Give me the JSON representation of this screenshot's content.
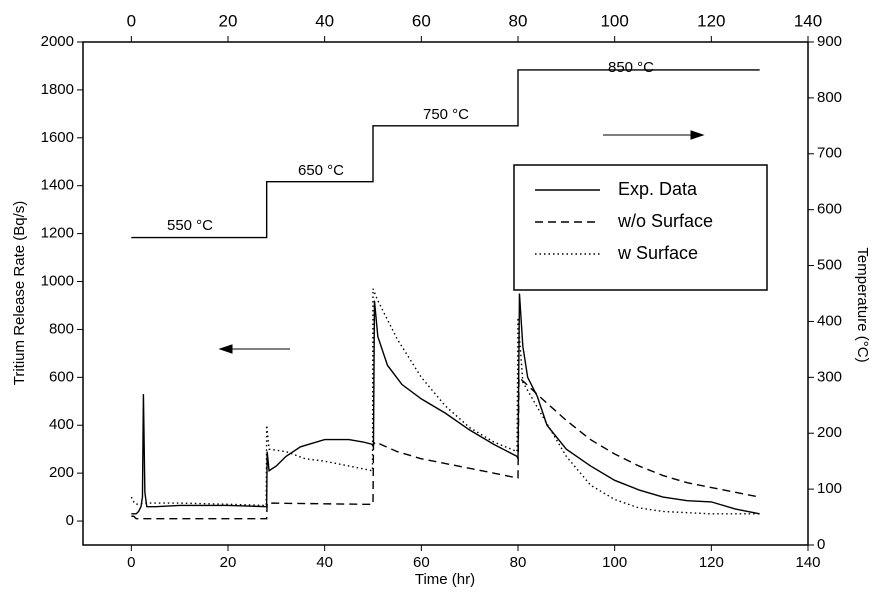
{
  "chart_data": {
    "type": "line",
    "x_label": "Time (hr)",
    "y_label": "Tritium Release Rate (Bq/s)",
    "y2_label": "Temperature (°C)",
    "xlim": [
      -10,
      140
    ],
    "xticks": [
      0,
      20,
      40,
      60,
      80,
      100,
      120,
      140
    ],
    "ylim": [
      -100,
      2000
    ],
    "yticks": [
      0,
      200,
      400,
      600,
      800,
      1000,
      1200,
      1400,
      1600,
      1800,
      2000
    ],
    "y2lim": [
      0,
      900
    ],
    "y2ticks": [
      0,
      100,
      200,
      300,
      400,
      500,
      600,
      700,
      800,
      900
    ],
    "legend": "upper right",
    "annotations": [
      "550 °C",
      "650 °C",
      "750 °C",
      "850 °C"
    ],
    "series": [
      {
        "name": "Exp. Data",
        "color": "#000000",
        "dash": "solid",
        "x": [
          0,
          1,
          1.5,
          2,
          2.3,
          2.5,
          2.8,
          3.2,
          5,
          10,
          15,
          20,
          25,
          27.9,
          28,
          28.1,
          28.5,
          30,
          32,
          35,
          40,
          45,
          48,
          49.9,
          50.1,
          50.3,
          51,
          53,
          56,
          60,
          65,
          70,
          75,
          79.8,
          80,
          80.3,
          81,
          82,
          84,
          86,
          90,
          95,
          100,
          105,
          110,
          115,
          120,
          125,
          130
        ],
        "values": [
          30,
          30,
          40,
          60,
          100,
          530,
          120,
          60,
          60,
          65,
          65,
          65,
          62,
          60,
          60,
          290,
          210,
          230,
          270,
          310,
          340,
          340,
          330,
          320,
          320,
          920,
          770,
          650,
          570,
          510,
          450,
          380,
          320,
          270,
          260,
          950,
          730,
          600,
          520,
          400,
          300,
          230,
          170,
          130,
          100,
          85,
          80,
          50,
          30
        ]
      },
      {
        "name": "w/o Surface",
        "color": "#000000",
        "dash": "dashed",
        "x": [
          0,
          0.5,
          1,
          28,
          28.1,
          48,
          50,
          50.1,
          50.5,
          55,
          60,
          65,
          70,
          75,
          79.8,
          80,
          80.2,
          85,
          90,
          95,
          100,
          105,
          110,
          115,
          120,
          125,
          130
        ],
        "values": [
          20,
          20,
          10,
          10,
          75,
          70,
          70,
          320,
          330,
          290,
          260,
          240,
          220,
          200,
          180,
          180,
          600,
          510,
          420,
          340,
          280,
          230,
          190,
          160,
          140,
          120,
          100
        ]
      },
      {
        "name": "w  Surface",
        "color": "#000000",
        "dash": "dotted",
        "x": [
          0,
          0.5,
          1,
          3,
          10,
          20,
          27.9,
          28,
          28.5,
          32,
          36,
          40,
          45,
          49.9,
          50,
          51,
          55,
          60,
          65,
          70,
          75,
          79.8,
          80,
          81,
          85,
          90,
          95,
          100,
          105,
          110,
          115,
          120,
          125,
          130
        ],
        "values": [
          100,
          80,
          70,
          75,
          75,
          70,
          65,
          400,
          300,
          290,
          260,
          250,
          230,
          210,
          970,
          920,
          760,
          600,
          480,
          390,
          330,
          290,
          850,
          580,
          440,
          270,
          150,
          90,
          55,
          40,
          35,
          30,
          30,
          30
        ]
      }
    ],
    "temperature": {
      "axis": "y2",
      "color": "#000000",
      "x": [
        0,
        28,
        28,
        50,
        50,
        80,
        80,
        130
      ],
      "values": [
        550,
        550,
        650,
        650,
        750,
        750,
        850,
        850
      ]
    }
  }
}
